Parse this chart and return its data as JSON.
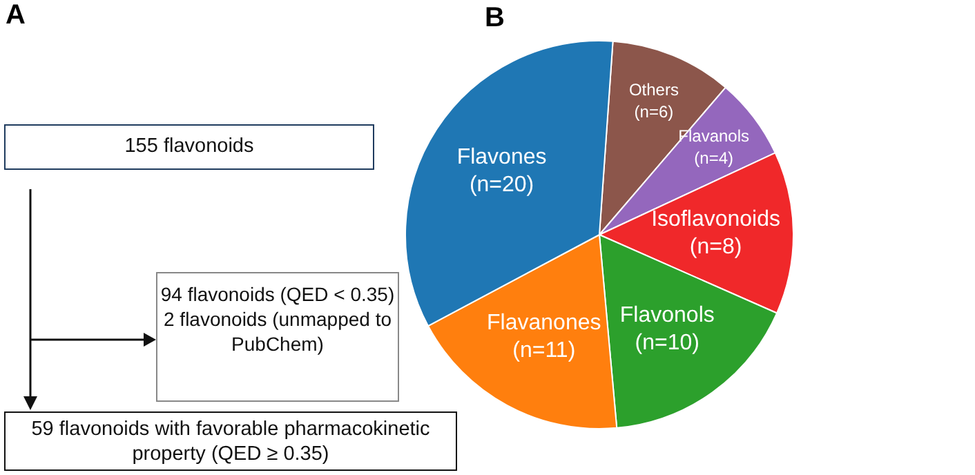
{
  "chart_data": [
    {
      "type": "other",
      "title": "A",
      "annotations": [
        "155 flavonoids",
        "94 flavonoids (QED < 0.35)",
        "2 flavonoids (unmapped to PubChem)",
        "59 flavonoids with favorable pharmacokinetic property (QED ≥ 0.35)"
      ]
    },
    {
      "type": "pie",
      "title": "B",
      "categories": [
        "Others",
        "Flavanols",
        "Isoflavonoids",
        "Flavonols",
        "Flavanones",
        "Flavones"
      ],
      "values": [
        6,
        4,
        8,
        10,
        11,
        20
      ],
      "value_labels": [
        "(n=6)",
        "(n=4)",
        "(n=8)",
        "(n=10)",
        "(n=11)",
        "(n=20)"
      ],
      "colors": [
        "#8c564b",
        "#9467bd",
        "#f0282a",
        "#2ca02c",
        "#ff7f0e",
        "#1f77b4"
      ],
      "legend": false
    }
  ]
}
